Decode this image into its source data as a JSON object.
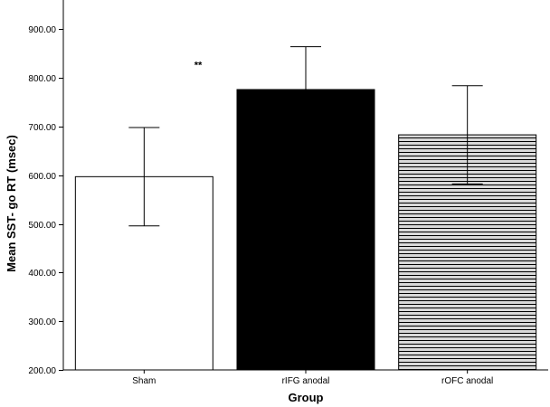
{
  "chart_data": {
    "type": "bar",
    "title": "",
    "xlabel": "Group",
    "ylabel": "Mean SST- go RT (msec)",
    "ylim": [
      200,
      960
    ],
    "yticks": [
      200,
      300,
      400,
      500,
      600,
      700,
      800,
      900
    ],
    "ytick_labels": [
      "200.00",
      "300.00",
      "400.00",
      "500.00",
      "600.00",
      "700.00",
      "800.00",
      "900.00"
    ],
    "categories": [
      "Sham",
      "rIFG anodal",
      "rOFC anodal"
    ],
    "values": [
      597,
      776,
      683
    ],
    "error_low": [
      496,
      689,
      582
    ],
    "error_high": [
      698,
      864,
      784
    ],
    "fills": [
      "white",
      "black",
      "hatched"
    ],
    "grid": false,
    "annotations": [
      {
        "text": "**",
        "category": "rIFG anodal",
        "value": 820
      }
    ]
  },
  "colors": {
    "bar_stroke": "#000000",
    "bar_black": "#000000",
    "bar_white": "#ffffff",
    "hatch_line": "#000000",
    "hatch_bg": "#d9d9d9"
  }
}
